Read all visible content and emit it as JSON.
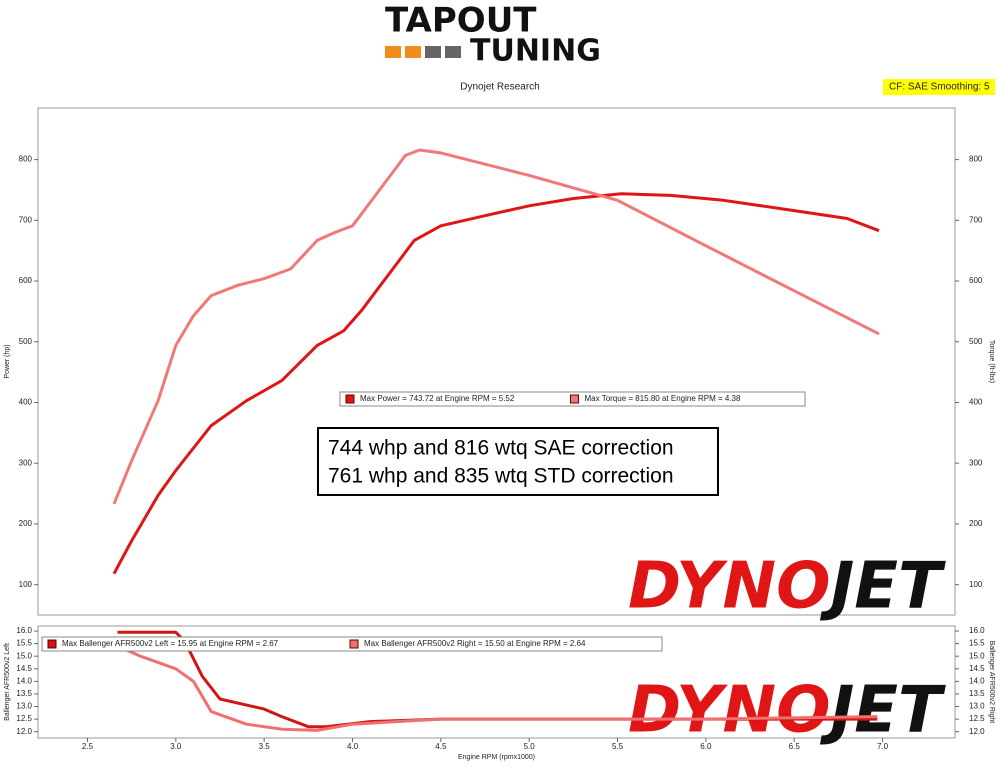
{
  "header": {
    "logo_top": "TAPOUT",
    "logo_bottom": "TUNING",
    "title": "Dynojet Research",
    "badge": "CF: SAE Smoothing: 5"
  },
  "chart_data": [
    {
      "type": "line",
      "ylabel": "Power (hp)",
      "y2label": "Torque (ft-lbs)",
      "annotation": [
        "744 whp and 816 wtq SAE correction",
        "761 whp and 835 wtq STD correction"
      ],
      "watermark": [
        "DYNO",
        "JET"
      ],
      "xlim": [
        2.22,
        7.41
      ],
      "ylim": [
        50,
        885
      ],
      "yticks": [
        100,
        200,
        300,
        400,
        500,
        600,
        700,
        800
      ],
      "y2lim": [
        50,
        885
      ],
      "y2ticks": [
        100,
        200,
        300,
        400,
        500,
        600,
        700,
        800
      ],
      "series": [
        {
          "name": "Max Power = 743.72 at Engine RPM = 5.52",
          "color": "#e01515",
          "x": [
            2.65,
            2.75,
            2.9,
            3.0,
            3.2,
            3.4,
            3.6,
            3.8,
            3.95,
            4.05,
            4.2,
            4.35,
            4.5,
            4.8,
            5.0,
            5.25,
            5.52,
            5.8,
            6.1,
            6.5,
            6.8,
            6.98
          ],
          "values": [
            118,
            172,
            247,
            288,
            362,
            403,
            436,
            494,
            518,
            551,
            609,
            667,
            691,
            711,
            724,
            736,
            743.72,
            741,
            733,
            716,
            703,
            683
          ]
        },
        {
          "name": "Max Torque = 815.80 at Engine RPM = 4.38",
          "color": "#f07878",
          "axis": "y2",
          "x": [
            2.65,
            2.75,
            2.9,
            3.0,
            3.1,
            3.2,
            3.35,
            3.5,
            3.65,
            3.8,
            3.9,
            4.0,
            4.15,
            4.3,
            4.38,
            4.5,
            5.0,
            5.5,
            6.0,
            6.5,
            6.98
          ],
          "values": [
            233,
            304,
            403,
            494,
            543,
            576,
            593,
            604,
            620,
            667,
            680,
            691,
            749,
            807,
            815.8,
            811,
            774,
            733,
            658,
            584,
            513
          ]
        }
      ]
    },
    {
      "type": "line",
      "ylabel": "Ballenger AFR500v2 Left",
      "y2label": "Ballenger AFR500v2 Right",
      "xlabel": "Engine RPM (rpmx1000)",
      "watermark": [
        "DYNO",
        "JET"
      ],
      "xlim": [
        2.22,
        7.41
      ],
      "xticks": [
        2.5,
        {
          "value": 3,
          "label": "3.0"
        },
        3.5,
        {
          "value": 4,
          "label": "4.0"
        },
        4.5,
        {
          "value": 5,
          "label": "5.0"
        },
        5.5,
        {
          "value": 6,
          "label": "6.0"
        },
        6.5,
        {
          "value": 7,
          "label": "7.0"
        }
      ],
      "ylim": [
        11.75,
        16.2
      ],
      "yticks": [
        {
          "value": 12,
          "label": "12.0"
        },
        12.5,
        {
          "value": 13,
          "label": "13.0"
        },
        13.5,
        {
          "value": 14,
          "label": "14.0"
        },
        14.5,
        {
          "value": 15,
          "label": "15.0"
        },
        15.5,
        {
          "value": 16,
          "label": "16.0"
        }
      ],
      "y2lim": [
        11.75,
        16.2
      ],
      "y2ticks": [
        {
          "value": 12,
          "label": "12.0"
        },
        12.5,
        {
          "value": 13,
          "label": "13.0"
        },
        13.5,
        {
          "value": 14,
          "label": "14.0"
        },
        14.5,
        {
          "value": 15,
          "label": "15.0"
        },
        15.5,
        {
          "value": 16,
          "label": "16.0"
        }
      ],
      "series": [
        {
          "name": "Max Ballenger AFR500v2 Left = 15.95 at Engine RPM = 2.67",
          "color": "#d01515",
          "x": [
            2.67,
            3.0,
            3.05,
            3.15,
            3.25,
            3.5,
            3.6,
            3.75,
            3.85,
            4.1,
            4.5,
            5.0,
            6.0,
            6.97
          ],
          "values": [
            15.95,
            15.95,
            15.6,
            14.2,
            13.3,
            12.9,
            12.6,
            12.2,
            12.2,
            12.4,
            12.5,
            12.5,
            12.5,
            12.5
          ]
        },
        {
          "name": "Max Ballenger AFR500v2 Right = 15.50 at Engine RPM = 2.64",
          "color": "#f07070",
          "axis": "y2",
          "x": [
            2.64,
            2.8,
            3.0,
            3.1,
            3.2,
            3.4,
            3.6,
            3.8,
            4.0,
            4.5,
            5.0,
            6.0,
            6.97
          ],
          "values": [
            15.5,
            15.0,
            14.5,
            14.0,
            12.8,
            12.3,
            12.1,
            12.05,
            12.3,
            12.5,
            12.5,
            12.5,
            12.6
          ]
        }
      ]
    }
  ]
}
